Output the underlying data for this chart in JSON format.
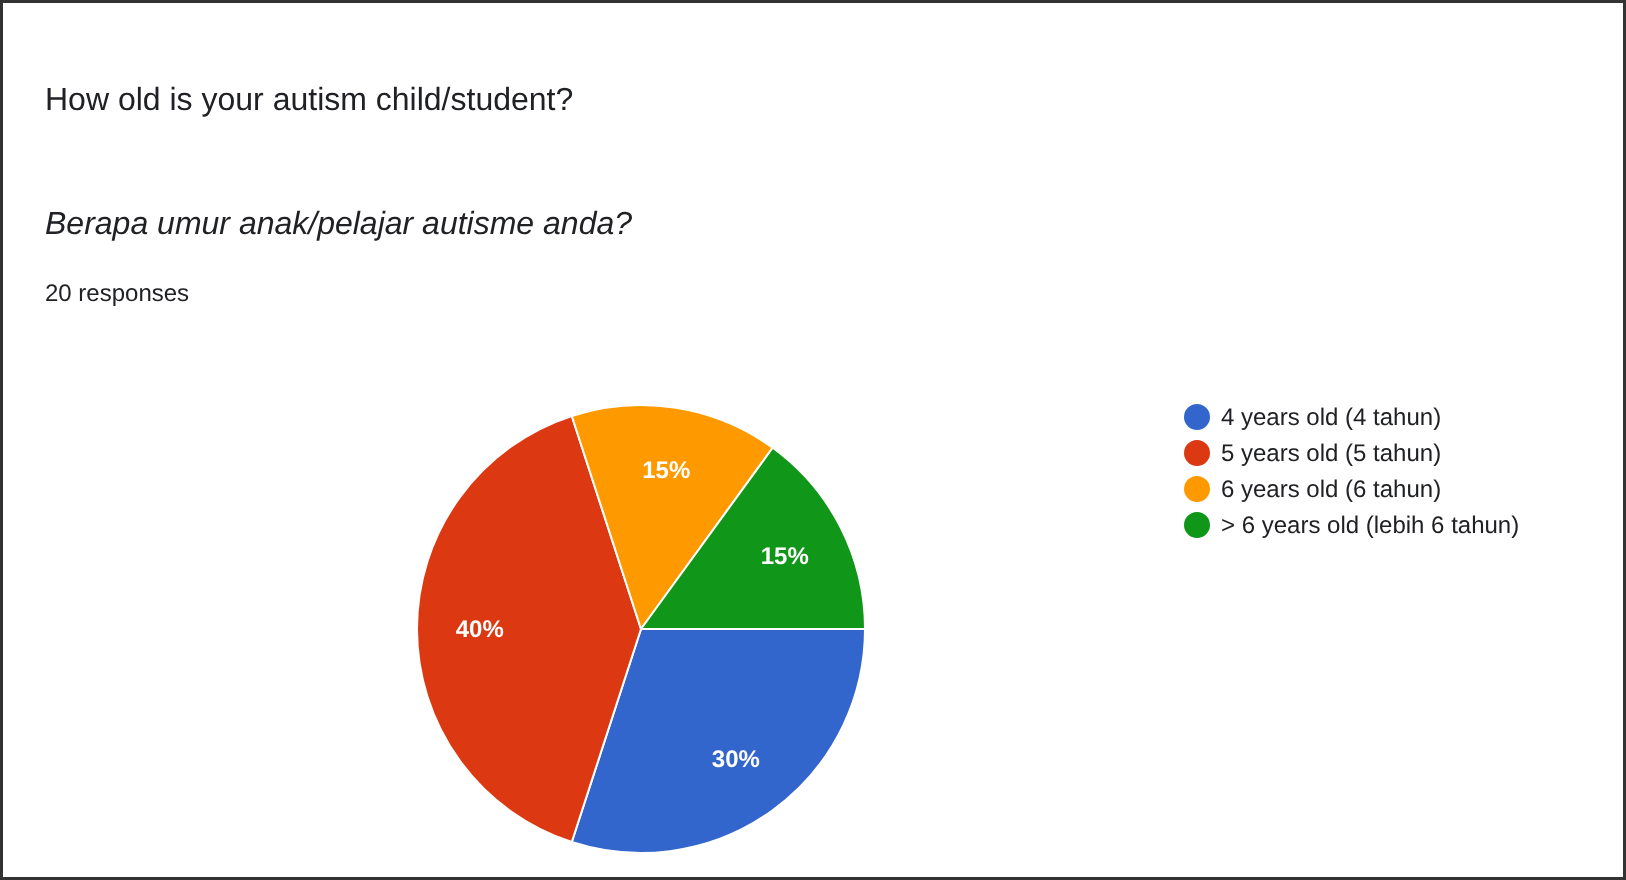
{
  "chart_data": {
    "type": "pie",
    "title": "How old is your autism child/student?",
    "subtitle": "Berapa umur anak/pelajar autisme anda?",
    "annotations": [
      "20 responses"
    ],
    "categories": [
      "4 years old (4 tahun)",
      "5 years old (5 tahun)",
      "6 years old (6 tahun)",
      "> 6 years old (lebih 6 tahun)"
    ],
    "values": [
      30,
      40,
      15,
      15
    ],
    "colors": [
      "#3366cc",
      "#dc3912",
      "#ff9900",
      "#109618"
    ],
    "value_labels": [
      "30%",
      "40%",
      "15%",
      "15%"
    ],
    "legend": "right"
  }
}
